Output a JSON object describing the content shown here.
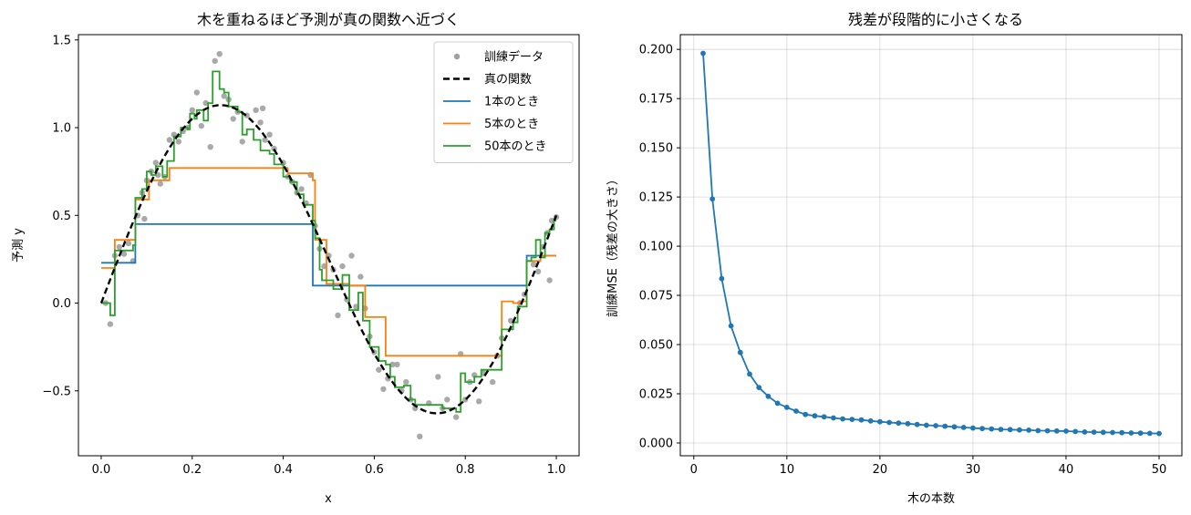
{
  "chart_data": [
    {
      "type": "scatter+line",
      "title": "木を重ねるほど予測が真の関数へ近づく",
      "xlabel": "x",
      "ylabel": "予測 y",
      "xlim": [
        -0.05,
        1.05
      ],
      "ylim": [
        -0.87,
        1.53
      ],
      "xticks": [
        0.0,
        0.2,
        0.4,
        0.6,
        0.8,
        1.0
      ],
      "xtick_labels": [
        "0.0",
        "0.2",
        "0.4",
        "0.6",
        "0.8",
        "1.0"
      ],
      "yticks": [
        -0.5,
        0.0,
        0.5,
        1.0,
        1.5
      ],
      "ytick_labels": [
        "−0.5",
        "0.0",
        "0.5",
        "1.0",
        "1.5"
      ],
      "legend_position": "top-right",
      "legend": [
        {
          "label": "訓練データ",
          "kind": "dot",
          "color": "#a0a0a0"
        },
        {
          "label": "真の関数",
          "kind": "dash",
          "color": "#000000"
        },
        {
          "label": "1本のとき",
          "kind": "line",
          "color": "#1f77b4"
        },
        {
          "label": "5本のとき",
          "kind": "line",
          "color": "#ff7f0e"
        },
        {
          "label": "50本のとき",
          "kind": "line",
          "color": "#2ca02c"
        }
      ],
      "scatter": {
        "name": "訓練データ",
        "color": "#a0a0a0",
        "points": [
          [
            0.01,
            0.0
          ],
          [
            0.02,
            -0.12
          ],
          [
            0.03,
            0.27
          ],
          [
            0.04,
            0.32
          ],
          [
            0.05,
            0.28
          ],
          [
            0.06,
            0.34
          ],
          [
            0.07,
            0.24
          ],
          [
            0.08,
            0.5
          ],
          [
            0.09,
            0.63
          ],
          [
            0.095,
            0.48
          ],
          [
            0.1,
            0.7
          ],
          [
            0.11,
            0.75
          ],
          [
            0.12,
            0.8
          ],
          [
            0.125,
            0.73
          ],
          [
            0.13,
            0.68
          ],
          [
            0.14,
            0.72
          ],
          [
            0.15,
            0.93
          ],
          [
            0.16,
            0.96
          ],
          [
            0.17,
            0.92
          ],
          [
            0.18,
            0.98
          ],
          [
            0.19,
            1.0
          ],
          [
            0.2,
            1.1
          ],
          [
            0.21,
            1.2
          ],
          [
            0.22,
            1.01
          ],
          [
            0.23,
            1.14
          ],
          [
            0.24,
            0.89
          ],
          [
            0.25,
            1.38
          ],
          [
            0.26,
            1.42
          ],
          [
            0.27,
            1.18
          ],
          [
            0.28,
            1.16
          ],
          [
            0.29,
            1.05
          ],
          [
            0.3,
            1.09
          ],
          [
            0.31,
            0.92
          ],
          [
            0.32,
            1.07
          ],
          [
            0.34,
            1.1
          ],
          [
            0.35,
            1.03
          ],
          [
            0.355,
            1.11
          ],
          [
            0.36,
            0.93
          ],
          [
            0.37,
            0.96
          ],
          [
            0.38,
            0.88
          ],
          [
            0.4,
            0.8
          ],
          [
            0.41,
            0.72
          ],
          [
            0.42,
            0.69
          ],
          [
            0.43,
            0.63
          ],
          [
            0.44,
            0.65
          ],
          [
            0.45,
            0.57
          ],
          [
            0.46,
            0.73
          ],
          [
            0.47,
            0.44
          ],
          [
            0.48,
            0.31
          ],
          [
            0.49,
            0.21
          ],
          [
            0.5,
            0.27
          ],
          [
            0.51,
            0.19
          ],
          [
            0.52,
            -0.07
          ],
          [
            0.53,
            0.21
          ],
          [
            0.54,
            0.02
          ],
          [
            0.55,
            0.27
          ],
          [
            0.56,
            -0.02
          ],
          [
            0.57,
            0.15
          ],
          [
            0.58,
            -0.03
          ],
          [
            0.59,
            -0.19
          ],
          [
            0.6,
            -0.28
          ],
          [
            0.61,
            -0.38
          ],
          [
            0.62,
            -0.49
          ],
          [
            0.63,
            -0.43
          ],
          [
            0.64,
            -0.35
          ],
          [
            0.65,
            -0.35
          ],
          [
            0.66,
            -0.5
          ],
          [
            0.67,
            -0.45
          ],
          [
            0.68,
            -0.55
          ],
          [
            0.69,
            -0.6
          ],
          [
            0.7,
            -0.76
          ],
          [
            0.72,
            -0.57
          ],
          [
            0.74,
            -0.42
          ],
          [
            0.75,
            -0.6
          ],
          [
            0.76,
            -0.55
          ],
          [
            0.78,
            -0.65
          ],
          [
            0.79,
            -0.29
          ],
          [
            0.8,
            -0.55
          ],
          [
            0.81,
            -0.45
          ],
          [
            0.82,
            -0.41
          ],
          [
            0.83,
            -0.56
          ],
          [
            0.84,
            -0.4
          ],
          [
            0.86,
            -0.45
          ],
          [
            0.87,
            -0.3
          ],
          [
            0.88,
            -0.2
          ],
          [
            0.9,
            -0.1
          ],
          [
            0.92,
            0.0
          ],
          [
            0.93,
            0.05
          ],
          [
            0.95,
            0.22
          ],
          [
            0.96,
            0.18
          ],
          [
            0.97,
            0.32
          ],
          [
            0.98,
            0.4
          ],
          [
            0.985,
            0.13
          ],
          [
            0.99,
            0.47
          ],
          [
            1.0,
            0.49
          ]
        ]
      },
      "true_function": {
        "name": "真の関数",
        "color": "#000000",
        "formula": "sin(2πx) + 0.5x",
        "x_range": [
          0.0,
          1.0
        ]
      },
      "series": [
        {
          "name": "1本のとき",
          "color": "#1f77b4",
          "steps": [
            [
              0.0,
              0.23
            ],
            [
              0.075,
              0.45
            ],
            [
              0.465,
              0.1
            ],
            [
              0.935,
              0.27
            ],
            [
              1.0,
              0.27
            ]
          ]
        },
        {
          "name": "5本のとき",
          "color": "#ff7f0e",
          "steps": [
            [
              0.0,
              0.2
            ],
            [
              0.03,
              0.36
            ],
            [
              0.075,
              0.59
            ],
            [
              0.105,
              0.7
            ],
            [
              0.15,
              0.77
            ],
            [
              0.41,
              0.74
            ],
            [
              0.465,
              0.7
            ],
            [
              0.47,
              0.36
            ],
            [
              0.495,
              0.11
            ],
            [
              0.545,
              0.1
            ],
            [
              0.58,
              -0.08
            ],
            [
              0.625,
              -0.3
            ],
            [
              0.79,
              -0.3
            ],
            [
              0.88,
              0.01
            ],
            [
              0.905,
              0.0
            ],
            [
              0.92,
              0.01
            ],
            [
              0.935,
              0.24
            ],
            [
              0.965,
              0.27
            ],
            [
              1.0,
              0.27
            ]
          ]
        },
        {
          "name": "50本のとき",
          "color": "#2ca02c",
          "steps": [
            [
              0.0,
              0.0
            ],
            [
              0.02,
              -0.07
            ],
            [
              0.03,
              0.3
            ],
            [
              0.07,
              0.33
            ],
            [
              0.075,
              0.6
            ],
            [
              0.09,
              0.65
            ],
            [
              0.1,
              0.75
            ],
            [
              0.11,
              0.73
            ],
            [
              0.12,
              0.78
            ],
            [
              0.135,
              0.72
            ],
            [
              0.145,
              0.81
            ],
            [
              0.16,
              0.95
            ],
            [
              0.175,
              1.0
            ],
            [
              0.19,
              0.99
            ],
            [
              0.195,
              1.08
            ],
            [
              0.205,
              1.05
            ],
            [
              0.21,
              1.1
            ],
            [
              0.225,
              1.04
            ],
            [
              0.235,
              1.14
            ],
            [
              0.245,
              1.32
            ],
            [
              0.26,
              1.22
            ],
            [
              0.27,
              1.2
            ],
            [
              0.28,
              1.12
            ],
            [
              0.3,
              1.09
            ],
            [
              0.31,
              0.96
            ],
            [
              0.32,
              0.99
            ],
            [
              0.335,
              0.93
            ],
            [
              0.35,
              0.87
            ],
            [
              0.37,
              0.85
            ],
            [
              0.38,
              0.79
            ],
            [
              0.4,
              0.72
            ],
            [
              0.415,
              0.69
            ],
            [
              0.43,
              0.62
            ],
            [
              0.445,
              0.56
            ],
            [
              0.465,
              0.47
            ],
            [
              0.47,
              0.37
            ],
            [
              0.48,
              0.19
            ],
            [
              0.485,
              0.13
            ],
            [
              0.495,
              0.13
            ],
            [
              0.51,
              0.08
            ],
            [
              0.53,
              0.16
            ],
            [
              0.545,
              -0.04
            ],
            [
              0.555,
              -0.04
            ],
            [
              0.565,
              0.06
            ],
            [
              0.575,
              -0.1
            ],
            [
              0.59,
              -0.25
            ],
            [
              0.61,
              -0.33
            ],
            [
              0.625,
              -0.35
            ],
            [
              0.635,
              -0.42
            ],
            [
              0.645,
              -0.48
            ],
            [
              0.665,
              -0.47
            ],
            [
              0.68,
              -0.55
            ],
            [
              0.69,
              -0.58
            ],
            [
              0.74,
              -0.58
            ],
            [
              0.75,
              -0.6
            ],
            [
              0.78,
              -0.62
            ],
            [
              0.79,
              -0.4
            ],
            [
              0.8,
              -0.45
            ],
            [
              0.82,
              -0.42
            ],
            [
              0.835,
              -0.38
            ],
            [
              0.85,
              -0.38
            ],
            [
              0.88,
              -0.15
            ],
            [
              0.905,
              -0.11
            ],
            [
              0.915,
              -0.02
            ],
            [
              0.935,
              0.24
            ],
            [
              0.945,
              0.26
            ],
            [
              0.955,
              0.36
            ],
            [
              0.965,
              0.26
            ],
            [
              0.975,
              0.4
            ],
            [
              0.985,
              0.42
            ],
            [
              0.995,
              0.47
            ],
            [
              1.0,
              0.47
            ]
          ]
        }
      ]
    },
    {
      "type": "line",
      "title": "残差が段階的に小さくなる",
      "xlabel": "木の本数",
      "ylabel": "訓練MSE（残差の大きさ）",
      "xlim": [
        -1.45,
        52.45
      ],
      "ylim": [
        -0.0065,
        0.2075
      ],
      "xticks": [
        0,
        10,
        20,
        30,
        40,
        50
      ],
      "xtick_labels": [
        "0",
        "10",
        "20",
        "30",
        "40",
        "50"
      ],
      "yticks": [
        0.0,
        0.025,
        0.05,
        0.075,
        0.1,
        0.125,
        0.15,
        0.175,
        0.2
      ],
      "ytick_labels": [
        "0.000",
        "0.025",
        "0.050",
        "0.075",
        "0.100",
        "0.125",
        "0.150",
        "0.175",
        "0.200"
      ],
      "grid": true,
      "series": [
        {
          "name": "",
          "color": "#1f77b4",
          "x": [
            1,
            2,
            3,
            4,
            5,
            6,
            7,
            8,
            9,
            10,
            11,
            12,
            13,
            14,
            15,
            16,
            17,
            18,
            19,
            20,
            21,
            22,
            23,
            24,
            25,
            26,
            27,
            28,
            29,
            30,
            31,
            32,
            33,
            34,
            35,
            36,
            37,
            38,
            39,
            40,
            41,
            42,
            43,
            44,
            45,
            46,
            47,
            48,
            49,
            50
          ],
          "values": [
            0.198,
            0.124,
            0.0835,
            0.0595,
            0.046,
            0.035,
            0.0282,
            0.0237,
            0.0202,
            0.0181,
            0.0162,
            0.0145,
            0.0138,
            0.0133,
            0.0127,
            0.0122,
            0.012,
            0.0117,
            0.0112,
            0.0108,
            0.0104,
            0.0101,
            0.0098,
            0.0094,
            0.009,
            0.0088,
            0.0085,
            0.0082,
            0.0079,
            0.0076,
            0.0073,
            0.0071,
            0.0069,
            0.0068,
            0.0066,
            0.0065,
            0.0063,
            0.0062,
            0.0061,
            0.006,
            0.0058,
            0.0056,
            0.0055,
            0.0054,
            0.0053,
            0.0052,
            0.0051,
            0.005,
            0.0049,
            0.0048
          ]
        }
      ]
    }
  ]
}
